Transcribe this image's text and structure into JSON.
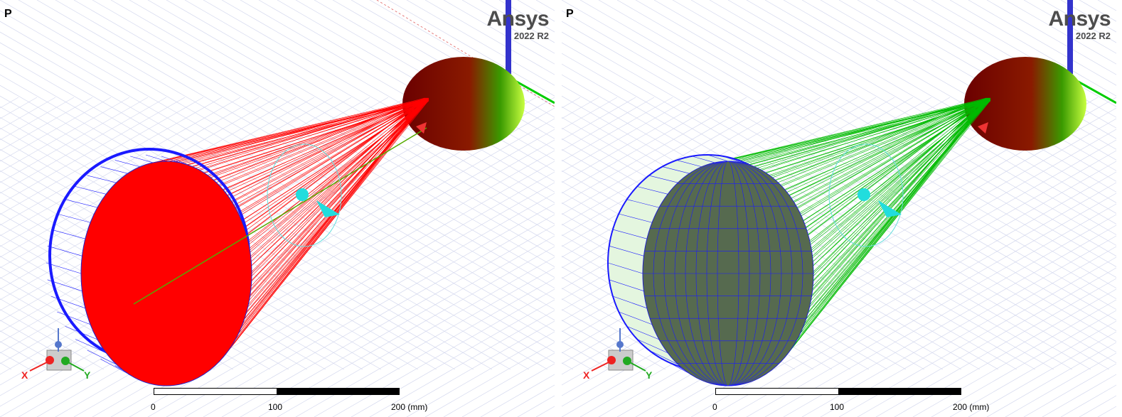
{
  "viewports": [
    {
      "panel_label": "P",
      "logo": {
        "name": "Ansys",
        "version": "2022 R2"
      },
      "scale": {
        "start": "0",
        "middle": "100",
        "end": "200 (mm)"
      },
      "triad": {
        "x_label": "X",
        "y_label": "Y"
      },
      "ray_color": "#ff0000",
      "object_face_color": "#ff0000",
      "mesh_color": "#1a1aff"
    },
    {
      "panel_label": "P",
      "logo": {
        "name": "Ansys",
        "version": "2022 R2"
      },
      "scale": {
        "start": "0",
        "middle": "100",
        "end": "200 (mm)"
      },
      "triad": {
        "x_label": "X",
        "y_label": "Y"
      },
      "ray_color": "#00bb00",
      "object_face_color": "#566a4f",
      "mesh_color": "#1a1aff"
    }
  ]
}
